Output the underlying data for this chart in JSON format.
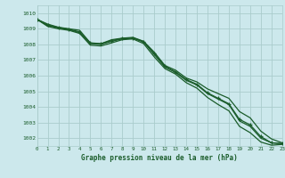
{
  "background_color": "#cce8ec",
  "grid_color": "#aacccc",
  "line_color": "#1a5c2a",
  "xlabel": "Graphe pression niveau de la mer (hPa)",
  "xlim": [
    0,
    23
  ],
  "ylim": [
    1001.5,
    1010.5
  ],
  "yticks": [
    1002,
    1003,
    1004,
    1005,
    1006,
    1007,
    1008,
    1009,
    1010
  ],
  "xticks": [
    0,
    1,
    2,
    3,
    4,
    5,
    6,
    7,
    8,
    9,
    10,
    11,
    12,
    13,
    14,
    15,
    16,
    17,
    18,
    19,
    20,
    21,
    22,
    23
  ],
  "series1": [
    1009.6,
    1009.3,
    1009.1,
    1009.0,
    1008.9,
    1008.1,
    1008.05,
    1008.3,
    1008.4,
    1008.45,
    1008.2,
    1007.5,
    1006.65,
    1006.35,
    1005.85,
    1005.6,
    1005.15,
    1004.85,
    1004.55,
    1003.7,
    1003.3,
    1002.45,
    1001.95,
    1001.7
  ],
  "series2": [
    1009.6,
    1009.2,
    1009.05,
    1008.95,
    1008.75,
    1008.05,
    1008.0,
    1008.2,
    1008.35,
    1008.4,
    1008.15,
    1007.35,
    1006.55,
    1006.2,
    1005.7,
    1005.4,
    1004.85,
    1004.5,
    1004.15,
    1003.1,
    1002.75,
    1002.0,
    1001.7,
    1001.65
  ],
  "series3": [
    1009.6,
    1009.15,
    1009.0,
    1008.9,
    1008.7,
    1007.95,
    1007.9,
    1008.1,
    1008.3,
    1008.35,
    1008.05,
    1007.2,
    1006.45,
    1006.1,
    1005.55,
    1005.2,
    1004.6,
    1004.15,
    1003.75,
    1002.75,
    1002.35,
    1001.75,
    1001.55,
    1001.6
  ],
  "series_marked": [
    1009.6,
    1009.25,
    1009.08,
    1008.97,
    1008.8,
    1008.08,
    1008.03,
    1008.25,
    1008.38,
    1008.42,
    1008.18,
    1007.42,
    1006.6,
    1006.25,
    1005.75,
    1005.45,
    1004.9,
    1004.55,
    1004.2,
    1003.2,
    1002.85,
    1002.1,
    1001.7,
    1001.65
  ]
}
